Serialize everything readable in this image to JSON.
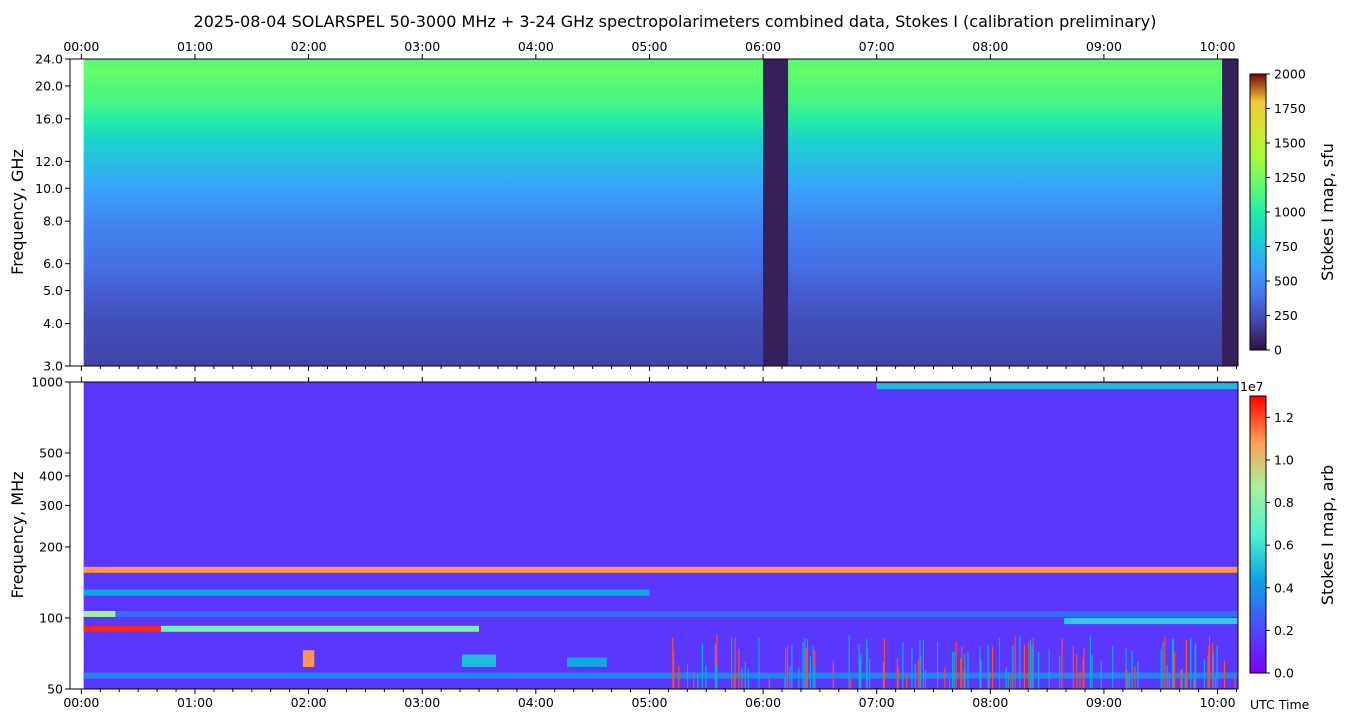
{
  "title": "2025-08-04  SOLARSPEL  50-3000 MHz  +  3-24 GHz  spectropolarimeters combined data,  Stokes I  (calibration preliminary)",
  "time_axis": {
    "ticks": [
      "00:00",
      "01:00",
      "02:00",
      "03:00",
      "04:00",
      "05:00",
      "06:00",
      "07:00",
      "08:00",
      "09:00",
      "10:00"
    ],
    "label": "UTC Time"
  },
  "chart_data": [
    {
      "type": "heatmap",
      "panel": "top",
      "ylabel": "Frequency, GHz",
      "yscale": "log",
      "ylim": [
        3.0,
        24.0
      ],
      "yticks": [
        3.0,
        4.0,
        5.0,
        6.0,
        8.0,
        10.0,
        12.0,
        16.0,
        20.0,
        24.0
      ],
      "ytick_labels": [
        "3.0",
        "4.0",
        "5.0",
        "6.0",
        "8.0",
        "10.0",
        "12.0",
        "16.0",
        "20.0",
        "24.0"
      ],
      "xlim_hours": [
        -0.1,
        10.18
      ],
      "data_start_hours": 0.02,
      "colormap": "turbo",
      "colorbar": {
        "label": "Stokes I map, sfu",
        "range": [
          0,
          2000
        ],
        "ticks": [
          "0",
          "250",
          "500",
          "750",
          "1000",
          "1250",
          "1500",
          "1750",
          "2000"
        ]
      },
      "background_profile": [
        {
          "freq_ghz": 3.0,
          "sfu": 140
        },
        {
          "freq_ghz": 4.0,
          "sfu": 170
        },
        {
          "freq_ghz": 5.0,
          "sfu": 220
        },
        {
          "freq_ghz": 6.0,
          "sfu": 270
        },
        {
          "freq_ghz": 8.0,
          "sfu": 340
        },
        {
          "freq_ghz": 10.0,
          "sfu": 430
        },
        {
          "freq_ghz": 12.0,
          "sfu": 520
        },
        {
          "freq_ghz": 14.0,
          "sfu": 600
        },
        {
          "freq_ghz": 16.0,
          "sfu": 720
        },
        {
          "freq_ghz": 18.0,
          "sfu": 800
        },
        {
          "freq_ghz": 20.0,
          "sfu": 830
        },
        {
          "freq_ghz": 22.0,
          "sfu": 870
        },
        {
          "freq_ghz": 24.0,
          "sfu": 830
        }
      ],
      "data_gaps_hours": [
        [
          6.0,
          6.22
        ],
        [
          10.04,
          10.18
        ]
      ]
    },
    {
      "type": "heatmap",
      "panel": "bottom",
      "ylabel": "Frequency, MHz",
      "yscale": "log",
      "ylim": [
        50,
        1000
      ],
      "yticks": [
        50,
        100,
        200,
        300,
        400,
        500,
        1000
      ],
      "ytick_labels": [
        "50",
        "100",
        "200",
        "300",
        "400",
        "500",
        "1000"
      ],
      "xlim_hours": [
        -0.1,
        10.18
      ],
      "data_start_hours": 0.02,
      "colormap": "rainbow",
      "colorbar": {
        "label": "Stokes I map, arb",
        "range": [
          0.0,
          1.3
        ],
        "ticks": [
          "0.0",
          "0.2",
          "0.4",
          "0.6",
          "0.8",
          "1.0",
          "1.2"
        ],
        "offset_text": "1e7"
      },
      "background_level": 0.15,
      "horizontal_bands": [
        {
          "freq_mhz": 90,
          "t_start": 0.02,
          "t_end": 0.7,
          "level": 1.25
        },
        {
          "freq_mhz": 90,
          "t_start": 0.7,
          "t_end": 3.5,
          "level": 0.75
        },
        {
          "freq_mhz": 104,
          "t_start": 0.02,
          "t_end": 0.3,
          "level": 0.85
        },
        {
          "freq_mhz": 104,
          "t_start": 0.3,
          "t_end": 10.18,
          "level": 0.3
        },
        {
          "freq_mhz": 160,
          "t_start": 0.02,
          "t_end": 10.18,
          "level": 1.1
        },
        {
          "freq_mhz": 128,
          "t_start": 0.02,
          "t_end": 5.0,
          "level": 0.45
        },
        {
          "freq_mhz": 57,
          "t_start": 0.02,
          "t_end": 10.18,
          "level": 0.35
        },
        {
          "freq_mhz": 97,
          "t_start": 8.65,
          "t_end": 10.18,
          "level": 0.55
        },
        {
          "freq_mhz": 960,
          "t_start": 7.0,
          "t_end": 10.18,
          "level": 0.5
        }
      ],
      "bursts": [
        {
          "t_hours": 2.0,
          "f_low_mhz": 62,
          "f_high_mhz": 73,
          "width_hours": 0.1,
          "level": 1.1
        },
        {
          "t_hours": 3.5,
          "f_low_mhz": 62,
          "f_high_mhz": 70,
          "width_hours": 0.3,
          "level": 0.5
        },
        {
          "t_hours": 4.45,
          "f_low_mhz": 62,
          "f_high_mhz": 68,
          "width_hours": 0.35,
          "level": 0.45
        }
      ],
      "spiky_interval_hours": [
        5.2,
        10.18
      ]
    }
  ]
}
